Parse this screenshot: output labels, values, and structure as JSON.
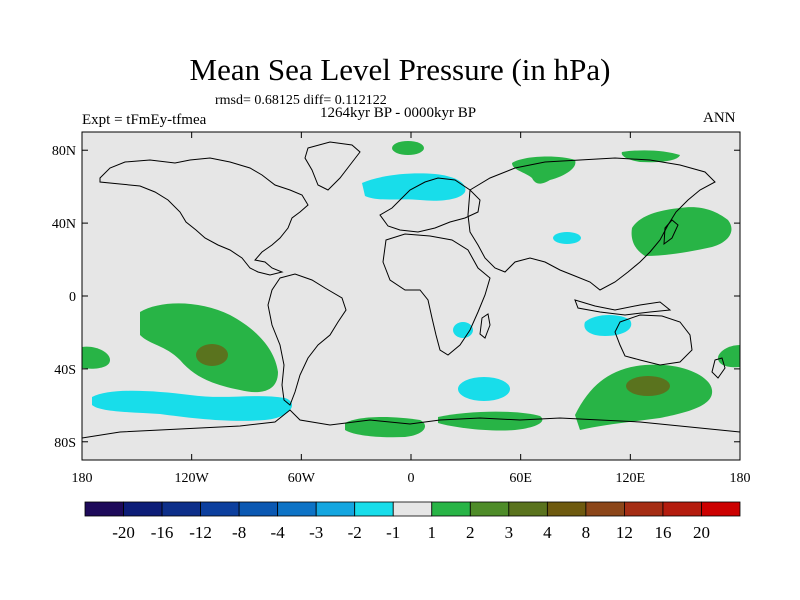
{
  "title": "Mean Sea Level Pressure (in hPa)",
  "stats": "rmsd= 0.68125 diff= 0.112122",
  "subtitle": "1264kyr BP - 0000kyr BP",
  "left_label": "Expt = tFmEy-tfmea",
  "right_label": "ANN",
  "x_ticks": [
    {
      "lon": -180,
      "label": "180"
    },
    {
      "lon": -120,
      "label": "120W"
    },
    {
      "lon": -60,
      "label": "60W"
    },
    {
      "lon": 0,
      "label": "0"
    },
    {
      "lon": 60,
      "label": "60E"
    },
    {
      "lon": 120,
      "label": "120E"
    },
    {
      "lon": 180,
      "label": "180"
    }
  ],
  "y_ticks": [
    {
      "lat": 80,
      "label": "80N"
    },
    {
      "lat": 40,
      "label": "40N"
    },
    {
      "lat": 0,
      "label": "0"
    },
    {
      "lat": -40,
      "label": "40S"
    },
    {
      "lat": -80,
      "label": "80S"
    }
  ],
  "colorbar": {
    "colors": [
      "#1e0a5a",
      "#0d1d78",
      "#0d2f8a",
      "#0c3f9e",
      "#0b58b2",
      "#0d73c6",
      "#14a6e0",
      "#18ddea",
      "#e6e6e6",
      "#28b446",
      "#4e8c29",
      "#5a731e",
      "#6e5a0f",
      "#8c4619",
      "#a52d14",
      "#b41c0e",
      "#cc0000"
    ],
    "labels": [
      "-20",
      "-16",
      "-12",
      "-8",
      "-4",
      "-3",
      "-2",
      "-1",
      "1",
      "2",
      "3",
      "4",
      "8",
      "12",
      "16",
      "20"
    ]
  },
  "colors": {
    "ocean": "#e6e6e6",
    "coast": "#000000",
    "pos1": "#28b446",
    "pos3": "#5a731e",
    "neg1": "#18ddea"
  },
  "anomaly_regions": [
    {
      "name": "south-pacific-high",
      "sign": "positive",
      "level": "1-2",
      "lon": -112,
      "lat": -32
    },
    {
      "name": "south-pacific-core",
      "sign": "positive",
      "level": "3-4",
      "lon": -112,
      "lat": -33
    },
    {
      "name": "southern-indian-high",
      "sign": "positive",
      "level": "1-2",
      "lon": 130,
      "lat": -53
    },
    {
      "name": "southern-indian-core",
      "sign": "positive",
      "level": "3-4",
      "lon": 130,
      "lat": -50
    },
    {
      "name": "south-pacific-low",
      "sign": "negative",
      "level": "-2 to -1",
      "lon": -112,
      "lat": -60
    },
    {
      "name": "north-atlantic-low",
      "sign": "negative",
      "level": "-2 to -1",
      "lon": -5,
      "lat": 62
    },
    {
      "name": "indian-ocean-low",
      "sign": "negative",
      "level": "-2 to -1",
      "lon": 50,
      "lat": -50
    },
    {
      "name": "north-pacific-high",
      "sign": "positive",
      "level": "1-2",
      "lon": 145,
      "lat": 40
    }
  ]
}
